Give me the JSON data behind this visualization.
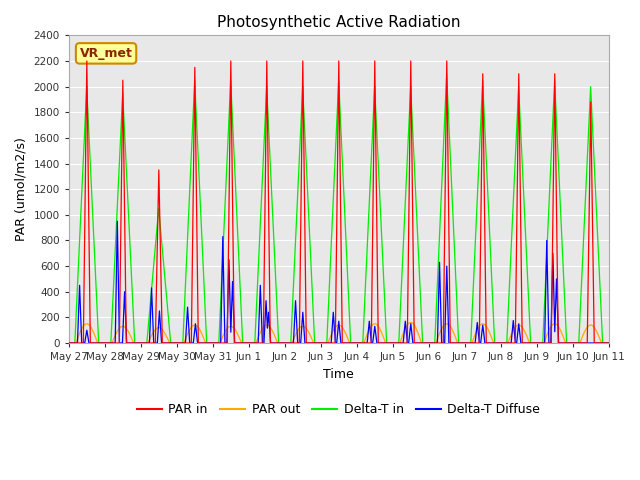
{
  "title": "Photosynthetic Active Radiation",
  "ylabel": "PAR (umol/m2/s)",
  "xlabel": "Time",
  "ylim": [
    0,
    2400
  ],
  "yticks": [
    0,
    200,
    400,
    600,
    800,
    1000,
    1200,
    1400,
    1600,
    1800,
    2000,
    2200,
    2400
  ],
  "bg_color": "#e8e8e8",
  "fig_color": "#ffffff",
  "legend_label": "VR_met",
  "legend_bg": "#ffff99",
  "legend_border": "#cc8800",
  "colors": {
    "PAR in": "#ff0000",
    "PAR out": "#ffaa00",
    "Delta-T in": "#00ee00",
    "Delta-T Diffuse": "#0000ff"
  },
  "x_tick_labels": [
    "May 27",
    "May 28",
    "May 29",
    "May 30",
    "May 31",
    "Jun 1",
    "Jun 2",
    "Jun 3",
    "Jun 4",
    "Jun 5",
    "Jun 6",
    "Jun 7",
    "Jun 8",
    "Jun 9",
    "Jun 10",
    "Jun 11"
  ],
  "n_days": 15,
  "pts_per_day": 288,
  "par_in_peaks": [
    2200,
    2050,
    1350,
    2150,
    2200,
    2200,
    2200,
    2200,
    2200,
    2200,
    2200,
    2100,
    2100,
    2100,
    1880
  ],
  "green_peaks": [
    2000,
    1950,
    1050,
    2050,
    2050,
    2000,
    2000,
    2050,
    2000,
    2000,
    2100,
    2050,
    2000,
    2050,
    2000
  ],
  "par_out_peaks": [
    150,
    130,
    120,
    140,
    130,
    140,
    130,
    140,
    150,
    160,
    150,
    150,
    140,
    150,
    140
  ],
  "blue_spikes": [
    [
      [
        0.3,
        450
      ],
      [
        0.5,
        100
      ]
    ],
    [
      [
        0.35,
        950
      ],
      [
        0.55,
        400
      ]
    ],
    [
      [
        0.3,
        430
      ],
      [
        0.52,
        250
      ]
    ],
    [
      [
        0.3,
        280
      ],
      [
        0.52,
        150
      ]
    ],
    [
      [
        0.28,
        830
      ],
      [
        0.45,
        650
      ],
      [
        0.55,
        480
      ]
    ],
    [
      [
        0.32,
        450
      ],
      [
        0.48,
        330
      ],
      [
        0.55,
        240
      ]
    ],
    [
      [
        0.3,
        330
      ],
      [
        0.5,
        240
      ]
    ],
    [
      [
        0.35,
        240
      ],
      [
        0.5,
        170
      ]
    ],
    [
      [
        0.35,
        170
      ],
      [
        0.5,
        130
      ]
    ],
    [
      [
        0.35,
        170
      ],
      [
        0.5,
        150
      ]
    ],
    [
      [
        0.3,
        630
      ],
      [
        0.5,
        600
      ]
    ],
    [
      [
        0.35,
        160
      ],
      [
        0.5,
        140
      ]
    ],
    [
      [
        0.35,
        175
      ],
      [
        0.5,
        150
      ]
    ],
    [
      [
        0.28,
        800
      ],
      [
        0.45,
        700
      ],
      [
        0.55,
        500
      ]
    ],
    [
      [
        0.35,
        0
      ]
    ]
  ]
}
